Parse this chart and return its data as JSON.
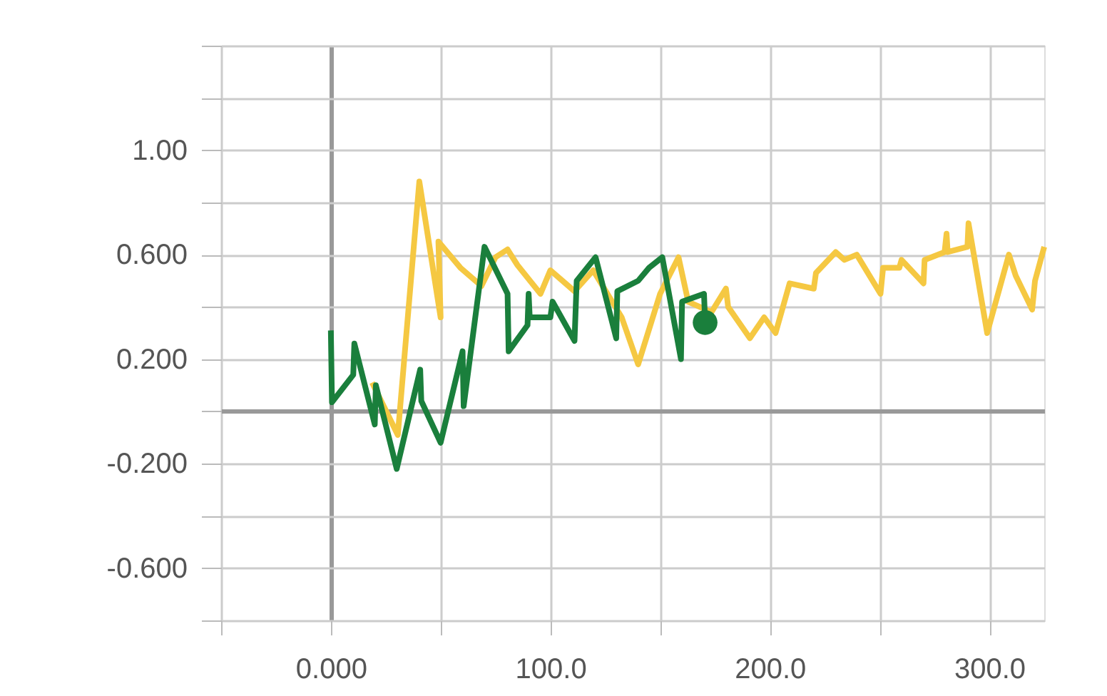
{
  "chart_data": {
    "type": "line",
    "xlim": [
      -50,
      325
    ],
    "ylim": [
      -0.8,
      1.4
    ],
    "xticks": [
      {
        "value": -50,
        "label": null
      },
      {
        "value": 0,
        "label": "0.000"
      },
      {
        "value": 50,
        "label": null
      },
      {
        "value": 100,
        "label": "100.0"
      },
      {
        "value": 150,
        "label": null
      },
      {
        "value": 200,
        "label": "200.0"
      },
      {
        "value": 250,
        "label": null
      },
      {
        "value": 300,
        "label": "300.0"
      }
    ],
    "yticks": [
      {
        "value": -0.8,
        "label": null
      },
      {
        "value": -0.6,
        "label": "-0.600"
      },
      {
        "value": -0.4,
        "label": null
      },
      {
        "value": -0.2,
        "label": "-0.200"
      },
      {
        "value": 0,
        "label": null
      },
      {
        "value": 0.2,
        "label": "0.200"
      },
      {
        "value": 0.4,
        "label": null
      },
      {
        "value": 0.6,
        "label": "0.600"
      },
      {
        "value": 0.8,
        "label": null
      },
      {
        "value": 1.0,
        "label": "1.00"
      },
      {
        "value": 1.2,
        "label": null
      },
      {
        "value": 1.4,
        "label": null
      }
    ],
    "grid": true,
    "line_style": "solid",
    "series": [
      {
        "color": "#f5c842",
        "x": [
          18.8,
          30.5,
          40.3,
          50,
          49,
          59,
          68.6,
          75,
          80.5,
          85,
          95.5,
          100,
          111,
          119.5,
          132.5,
          140,
          150,
          158.4,
          162.8,
          173.4,
          180,
          181,
          190.9,
          197.4,
          202.6,
          209,
          220,
          221,
          230,
          234,
          239.6,
          250.4,
          251.6,
          259,
          260,
          270,
          270.5,
          279.6,
          280.5,
          281,
          290,
          290.5,
          299,
          308.9,
          312,
          319.5,
          320.8,
          325
        ],
        "values": [
          0.11,
          -0.09,
          0.88,
          0.36,
          0.65,
          0.55,
          0.48,
          0.59,
          0.62,
          0.56,
          0.45,
          0.54,
          0.46,
          0.54,
          0.36,
          0.18,
          0.45,
          0.59,
          0.42,
          0.38,
          0.47,
          0.4,
          0.28,
          0.36,
          0.3,
          0.49,
          0.47,
          0.53,
          0.61,
          0.58,
          0.6,
          0.45,
          0.55,
          0.55,
          0.58,
          0.49,
          0.58,
          0.61,
          0.68,
          0.61,
          0.63,
          0.72,
          0.3,
          0.6,
          0.52,
          0.39,
          0.5,
          0.63
        ]
      },
      {
        "color": "#1a7f3c",
        "x": [
          0,
          0.5,
          10.2,
          10.7,
          20,
          20.5,
          30,
          40.7,
          41.2,
          50,
          60,
          60.5,
          70,
          80.5,
          81,
          89.6,
          90.1,
          90.6,
          100,
          101,
          111,
          112,
          120.6,
          130,
          130.5,
          140,
          145,
          151,
          159.5,
          160,
          170,
          170.5
        ],
        "values": [
          0.31,
          0.035,
          0.14,
          0.26,
          -0.05,
          0.1,
          -0.22,
          0.16,
          0.04,
          -0.12,
          0.23,
          0.02,
          0.63,
          0.45,
          0.23,
          0.33,
          0.45,
          0.36,
          0.36,
          0.42,
          0.27,
          0.5,
          0.59,
          0.28,
          0.46,
          0.5,
          0.55,
          0.59,
          0.2,
          0.42,
          0.45,
          0.34
        ]
      },
      {
        "type": "scatter",
        "marker": "circle",
        "color": "#1a7f3c",
        "x": [
          170.5
        ],
        "values": [
          0.34
        ]
      }
    ]
  }
}
